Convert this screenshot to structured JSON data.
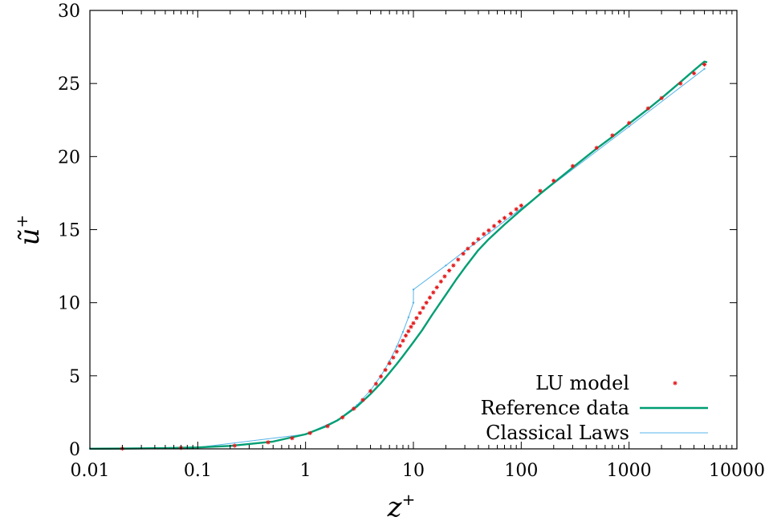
{
  "chart_data": {
    "type": "line",
    "x_scale": "log",
    "xlim": [
      0.01,
      10000
    ],
    "ylim": [
      0,
      30
    ],
    "x_ticks": [
      0.01,
      0.1,
      1,
      10,
      100,
      1000,
      10000
    ],
    "x_tick_labels": [
      "0.01",
      "0.1",
      "1",
      "10",
      "100",
      "1000",
      "10000"
    ],
    "y_ticks": [
      0,
      5,
      10,
      15,
      20,
      25,
      30
    ],
    "y_tick_labels": [
      "0",
      "5",
      "10",
      "15",
      "20",
      "25",
      "30"
    ],
    "xlabel": "z",
    "xlabel_sup": "+",
    "ylabel": "ũ",
    "ylabel_sup": "+",
    "grid": false,
    "legend_position": "bottom-right",
    "series": [
      {
        "name": "LU model",
        "style": "points",
        "marker": "*",
        "color": "#e41a1c",
        "x": [
          0.02,
          0.07,
          0.22,
          0.45,
          0.75,
          1.1,
          1.6,
          2.2,
          2.8,
          3.4,
          4,
          4.5,
          5,
          5.5,
          6,
          6.5,
          7,
          7.5,
          8,
          8.5,
          9,
          9.5,
          10,
          10.7,
          11.5,
          12.3,
          13.2,
          14.2,
          15.3,
          16.5,
          18,
          19.5,
          21.5,
          23.5,
          26,
          29,
          32,
          36,
          40,
          45,
          50,
          56,
          63,
          70,
          80,
          90,
          100,
          150,
          200,
          300,
          500,
          700,
          1000,
          1500,
          2000,
          3000,
          4000,
          5000
        ],
        "y": [
          0.02,
          0.07,
          0.22,
          0.45,
          0.73,
          1.08,
          1.55,
          2.15,
          2.75,
          3.35,
          3.95,
          4.45,
          4.95,
          5.4,
          5.85,
          6.25,
          6.65,
          7.05,
          7.4,
          7.75,
          8.05,
          8.35,
          8.6,
          8.95,
          9.3,
          9.65,
          10.0,
          10.35,
          10.7,
          11.05,
          11.45,
          11.8,
          12.2,
          12.55,
          12.95,
          13.35,
          13.7,
          14.05,
          14.35,
          14.7,
          14.95,
          15.25,
          15.55,
          15.8,
          16.1,
          16.4,
          16.65,
          17.65,
          18.35,
          19.35,
          20.6,
          21.45,
          22.3,
          23.3,
          24.0,
          25.0,
          25.7,
          26.3
        ]
      },
      {
        "name": "Reference data",
        "style": "line",
        "color": "#009e73",
        "x": [
          0.01,
          0.02,
          0.05,
          0.1,
          0.2,
          0.5,
          1,
          1.5,
          2,
          3,
          4,
          5,
          6,
          7,
          8,
          10,
          12,
          15,
          20,
          25,
          30,
          40,
          50,
          70,
          100,
          150,
          200,
          300,
          500,
          700,
          1000,
          1500,
          2000,
          3000,
          4000,
          5000,
          5300
        ],
        "y": [
          0.01,
          0.02,
          0.05,
          0.1,
          0.2,
          0.5,
          1.0,
          1.5,
          1.97,
          2.9,
          3.75,
          4.5,
          5.2,
          5.8,
          6.35,
          7.3,
          8.1,
          9.2,
          10.55,
          11.6,
          12.4,
          13.6,
          14.35,
          15.35,
          16.35,
          17.45,
          18.2,
          19.25,
          20.55,
          21.35,
          22.25,
          23.25,
          24.0,
          25.1,
          25.9,
          26.5,
          26.45
        ]
      },
      {
        "name": "Classical Laws",
        "style": "linespoints",
        "color": "#56b4e9",
        "x": [
          0.01,
          0.1,
          1,
          2,
          3,
          4,
          5,
          6,
          7,
          8,
          9,
          10,
          10.01,
          20,
          30,
          50,
          100,
          1000,
          5000
        ],
        "y": [
          0.01,
          0.1,
          1.0,
          2.0,
          3.0,
          4.0,
          5.0,
          6.0,
          7.0,
          8.0,
          9.0,
          10.0,
          10.9,
          12.55,
          13.55,
          14.75,
          16.45,
          22.05,
          26.0
        ]
      }
    ]
  }
}
